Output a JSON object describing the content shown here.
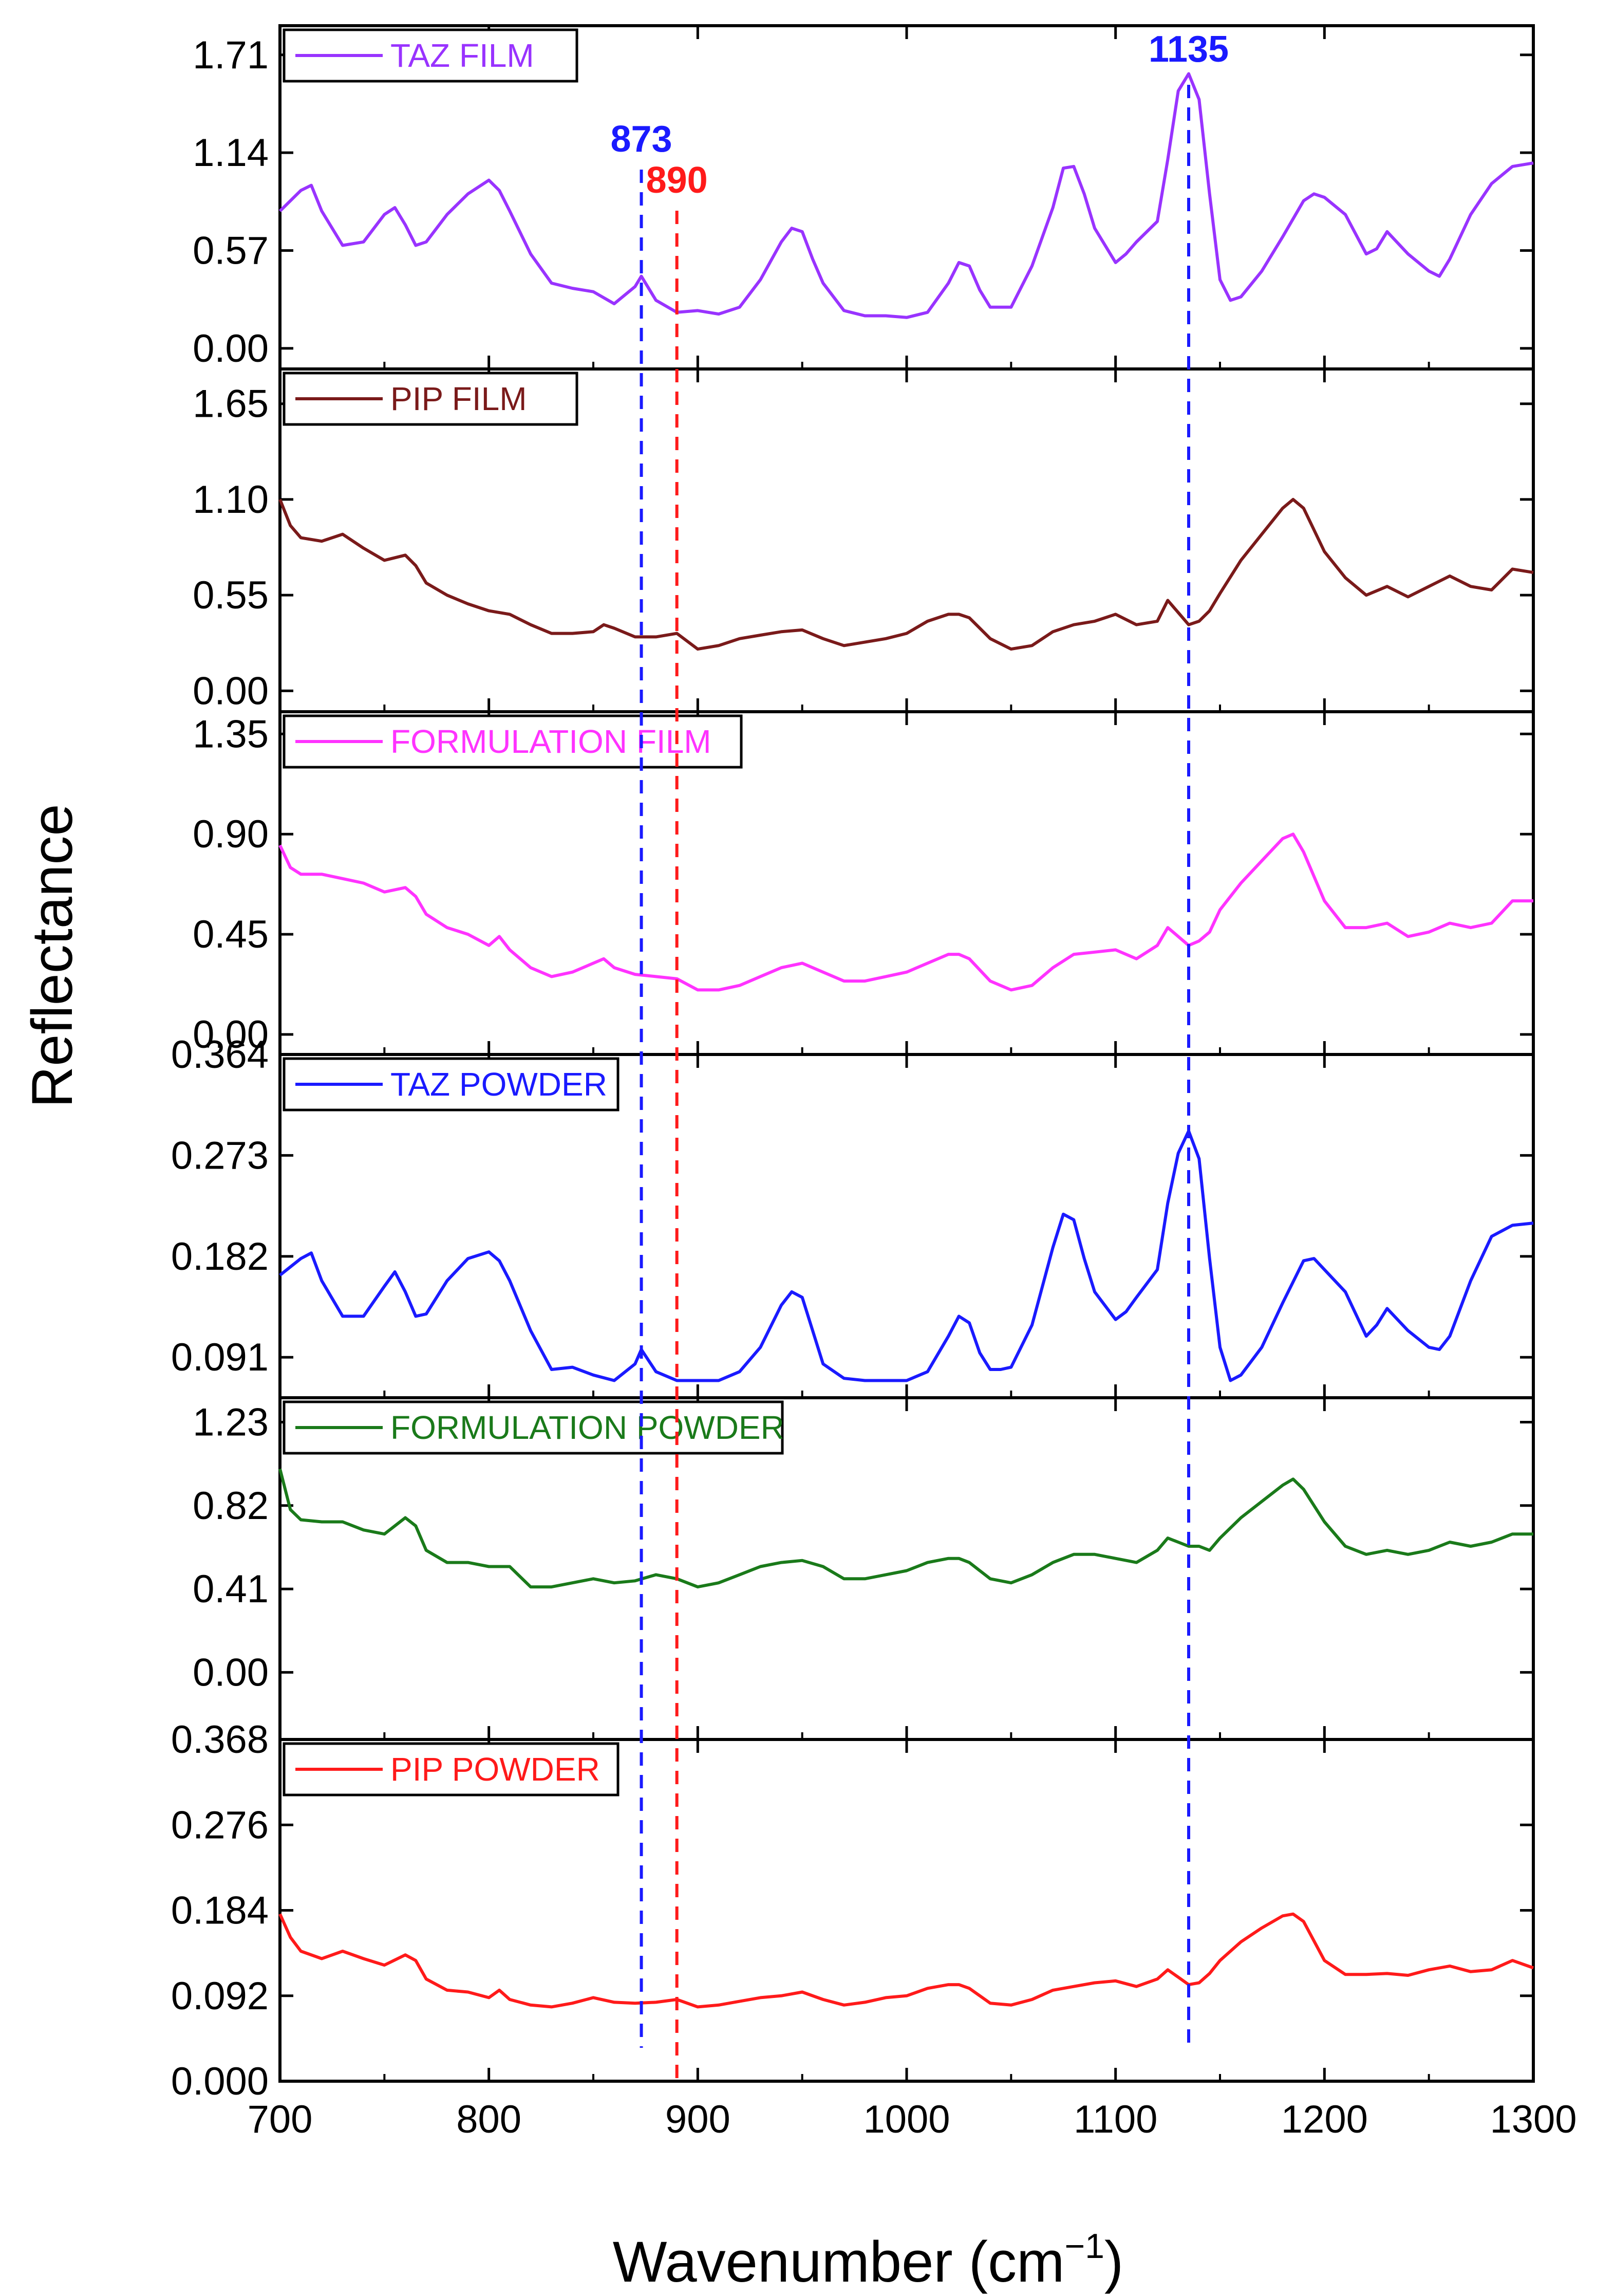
{
  "chart_data": {
    "type": "line",
    "title": "",
    "xlabel": "Wavenumber (cm",
    "xlabel_sup": "−1",
    "xlabel_close": ")",
    "ylabel": "Reflectance",
    "xlim": [
      700,
      1300
    ],
    "xticks": [
      700,
      800,
      900,
      1000,
      1100,
      1200,
      1300
    ],
    "xtick_labels": [
      "700",
      "800",
      "900",
      "1000",
      "1100",
      "1200",
      "1300"
    ],
    "vlines": [
      {
        "x": 873,
        "label": "873",
        "color": "#1a1aff"
      },
      {
        "x": 890,
        "label": "890",
        "color": "#ff1a1a"
      },
      {
        "x": 1135,
        "label": "1135",
        "color": "#1a1aff"
      }
    ],
    "panels": [
      {
        "name": "TAZ FILM",
        "color": "#9933ff",
        "ylim": [
          -0.12,
          1.88
        ],
        "yticks": [
          "0.00",
          "0.57",
          "1.14",
          "1.71"
        ],
        "x": [
          700,
          710,
          715,
          720,
          730,
          740,
          750,
          755,
          760,
          765,
          770,
          780,
          790,
          800,
          805,
          810,
          820,
          830,
          840,
          850,
          860,
          870,
          873,
          880,
          890,
          900,
          910,
          920,
          930,
          940,
          945,
          950,
          955,
          960,
          970,
          980,
          990,
          1000,
          1010,
          1020,
          1025,
          1030,
          1035,
          1040,
          1045,
          1050,
          1060,
          1070,
          1075,
          1080,
          1085,
          1090,
          1100,
          1105,
          1110,
          1120,
          1125,
          1130,
          1135,
          1140,
          1145,
          1150,
          1155,
          1160,
          1170,
          1180,
          1190,
          1195,
          1200,
          1210,
          1220,
          1225,
          1230,
          1240,
          1250,
          1255,
          1260,
          1270,
          1280,
          1290,
          1300
        ],
        "y": [
          0.8,
          0.92,
          0.95,
          0.8,
          0.6,
          0.62,
          0.78,
          0.82,
          0.72,
          0.6,
          0.62,
          0.78,
          0.9,
          0.98,
          0.92,
          0.8,
          0.55,
          0.38,
          0.35,
          0.33,
          0.26,
          0.36,
          0.42,
          0.28,
          0.21,
          0.22,
          0.2,
          0.24,
          0.4,
          0.62,
          0.7,
          0.68,
          0.52,
          0.38,
          0.22,
          0.19,
          0.19,
          0.18,
          0.21,
          0.38,
          0.5,
          0.48,
          0.34,
          0.24,
          0.24,
          0.24,
          0.48,
          0.82,
          1.05,
          1.06,
          0.9,
          0.7,
          0.5,
          0.55,
          0.62,
          0.74,
          1.1,
          1.5,
          1.6,
          1.45,
          0.9,
          0.4,
          0.28,
          0.3,
          0.45,
          0.65,
          0.86,
          0.9,
          0.88,
          0.78,
          0.55,
          0.58,
          0.68,
          0.55,
          0.45,
          0.42,
          0.52,
          0.78,
          0.96,
          1.06,
          1.08
        ]
      },
      {
        "name": "PIP FILM",
        "color": "#7a1a1a",
        "ylim": [
          -0.12,
          1.85
        ],
        "yticks": [
          "0.00",
          "0.55",
          "1.10",
          "1.65"
        ],
        "x": [
          700,
          705,
          710,
          720,
          730,
          740,
          750,
          760,
          765,
          770,
          780,
          790,
          800,
          810,
          820,
          830,
          840,
          850,
          855,
          860,
          870,
          880,
          890,
          900,
          910,
          920,
          930,
          940,
          950,
          960,
          970,
          980,
          990,
          1000,
          1010,
          1020,
          1025,
          1030,
          1040,
          1050,
          1060,
          1070,
          1080,
          1090,
          1100,
          1110,
          1120,
          1125,
          1130,
          1135,
          1140,
          1145,
          1150,
          1160,
          1170,
          1180,
          1185,
          1190,
          1200,
          1210,
          1220,
          1230,
          1240,
          1250,
          1260,
          1270,
          1280,
          1290,
          1300
        ],
        "y": [
          1.1,
          0.95,
          0.88,
          0.86,
          0.9,
          0.82,
          0.75,
          0.78,
          0.72,
          0.62,
          0.55,
          0.5,
          0.46,
          0.44,
          0.38,
          0.33,
          0.33,
          0.34,
          0.38,
          0.36,
          0.31,
          0.31,
          0.33,
          0.24,
          0.26,
          0.3,
          0.32,
          0.34,
          0.35,
          0.3,
          0.26,
          0.28,
          0.3,
          0.33,
          0.4,
          0.44,
          0.44,
          0.42,
          0.3,
          0.24,
          0.26,
          0.34,
          0.38,
          0.4,
          0.44,
          0.38,
          0.4,
          0.52,
          0.45,
          0.38,
          0.4,
          0.46,
          0.56,
          0.75,
          0.9,
          1.05,
          1.1,
          1.05,
          0.8,
          0.65,
          0.55,
          0.6,
          0.54,
          0.6,
          0.66,
          0.6,
          0.58,
          0.7,
          0.68
        ]
      },
      {
        "name": "FORMULATION FILM",
        "color": "#ff33ff",
        "ylim": [
          -0.09,
          1.45
        ],
        "yticks": [
          "0.00",
          "0.45",
          "0.90",
          "1.35"
        ],
        "x": [
          700,
          705,
          710,
          720,
          730,
          740,
          750,
          760,
          765,
          770,
          780,
          790,
          800,
          805,
          810,
          820,
          830,
          840,
          850,
          855,
          860,
          870,
          880,
          890,
          900,
          910,
          920,
          930,
          940,
          950,
          960,
          970,
          980,
          990,
          1000,
          1010,
          1020,
          1025,
          1030,
          1040,
          1050,
          1060,
          1070,
          1080,
          1090,
          1100,
          1110,
          1120,
          1125,
          1130,
          1135,
          1140,
          1145,
          1150,
          1160,
          1170,
          1180,
          1185,
          1190,
          1200,
          1210,
          1220,
          1230,
          1240,
          1250,
          1260,
          1270,
          1280,
          1290,
          1300
        ],
        "y": [
          0.85,
          0.75,
          0.72,
          0.72,
          0.7,
          0.68,
          0.64,
          0.66,
          0.62,
          0.54,
          0.48,
          0.45,
          0.4,
          0.44,
          0.38,
          0.3,
          0.26,
          0.28,
          0.32,
          0.34,
          0.3,
          0.27,
          0.26,
          0.25,
          0.2,
          0.2,
          0.22,
          0.26,
          0.3,
          0.32,
          0.28,
          0.24,
          0.24,
          0.26,
          0.28,
          0.32,
          0.36,
          0.36,
          0.34,
          0.24,
          0.2,
          0.22,
          0.3,
          0.36,
          0.37,
          0.38,
          0.34,
          0.4,
          0.48,
          0.44,
          0.4,
          0.42,
          0.46,
          0.56,
          0.68,
          0.78,
          0.88,
          0.9,
          0.82,
          0.6,
          0.48,
          0.48,
          0.5,
          0.44,
          0.46,
          0.5,
          0.48,
          0.5,
          0.6,
          0.6
        ]
      },
      {
        "name": "TAZ POWDER",
        "color": "#1a1aff",
        "ylim": [
          0.0545,
          0.364
        ],
        "yticks": [
          "0.091",
          "0.182",
          "0.273",
          "0.364"
        ],
        "x": [
          700,
          710,
          715,
          720,
          730,
          740,
          750,
          755,
          760,
          765,
          770,
          780,
          790,
          800,
          805,
          810,
          820,
          830,
          840,
          850,
          860,
          870,
          873,
          880,
          890,
          900,
          910,
          920,
          930,
          940,
          945,
          950,
          955,
          960,
          970,
          980,
          990,
          1000,
          1010,
          1020,
          1025,
          1030,
          1035,
          1040,
          1045,
          1050,
          1060,
          1070,
          1075,
          1080,
          1085,
          1090,
          1100,
          1105,
          1110,
          1120,
          1125,
          1130,
          1135,
          1140,
          1145,
          1150,
          1155,
          1160,
          1170,
          1180,
          1190,
          1195,
          1200,
          1210,
          1220,
          1225,
          1230,
          1240,
          1250,
          1255,
          1260,
          1270,
          1280,
          1290,
          1300
        ],
        "y": [
          0.165,
          0.18,
          0.185,
          0.16,
          0.128,
          0.128,
          0.155,
          0.168,
          0.15,
          0.128,
          0.13,
          0.16,
          0.18,
          0.186,
          0.178,
          0.16,
          0.115,
          0.08,
          0.082,
          0.075,
          0.07,
          0.085,
          0.098,
          0.078,
          0.07,
          0.07,
          0.07,
          0.078,
          0.1,
          0.138,
          0.15,
          0.145,
          0.115,
          0.085,
          0.072,
          0.07,
          0.07,
          0.07,
          0.078,
          0.11,
          0.128,
          0.122,
          0.095,
          0.08,
          0.08,
          0.082,
          0.12,
          0.19,
          0.22,
          0.215,
          0.18,
          0.15,
          0.125,
          0.132,
          0.145,
          0.17,
          0.23,
          0.275,
          0.295,
          0.27,
          0.18,
          0.1,
          0.07,
          0.075,
          0.1,
          0.14,
          0.178,
          0.18,
          0.17,
          0.15,
          0.11,
          0.12,
          0.135,
          0.115,
          0.1,
          0.098,
          0.11,
          0.16,
          0.2,
          0.21,
          0.212
        ]
      },
      {
        "name": "FORMULATION POWDER",
        "color": "#1a7a1a",
        "ylim": [
          -0.33,
          1.35
        ],
        "yticks": [
          "0.00",
          "0.41",
          "0.82",
          "1.23"
        ],
        "x": [
          700,
          705,
          710,
          720,
          730,
          740,
          750,
          760,
          765,
          770,
          780,
          790,
          800,
          810,
          820,
          830,
          840,
          850,
          860,
          870,
          880,
          890,
          900,
          910,
          920,
          930,
          940,
          950,
          960,
          970,
          980,
          990,
          1000,
          1010,
          1020,
          1025,
          1030,
          1040,
          1050,
          1060,
          1070,
          1080,
          1090,
          1100,
          1110,
          1120,
          1125,
          1130,
          1135,
          1140,
          1145,
          1150,
          1160,
          1170,
          1180,
          1185,
          1190,
          1200,
          1210,
          1220,
          1230,
          1240,
          1250,
          1260,
          1270,
          1280,
          1290,
          1300
        ],
        "y": [
          1.0,
          0.8,
          0.75,
          0.74,
          0.74,
          0.7,
          0.68,
          0.76,
          0.72,
          0.6,
          0.54,
          0.54,
          0.52,
          0.52,
          0.42,
          0.42,
          0.44,
          0.46,
          0.44,
          0.45,
          0.48,
          0.46,
          0.42,
          0.44,
          0.48,
          0.52,
          0.54,
          0.55,
          0.52,
          0.46,
          0.46,
          0.48,
          0.5,
          0.54,
          0.56,
          0.56,
          0.54,
          0.46,
          0.44,
          0.48,
          0.54,
          0.58,
          0.58,
          0.56,
          0.54,
          0.6,
          0.66,
          0.64,
          0.62,
          0.62,
          0.6,
          0.66,
          0.76,
          0.84,
          0.92,
          0.95,
          0.9,
          0.74,
          0.62,
          0.58,
          0.6,
          0.58,
          0.6,
          0.64,
          0.62,
          0.64,
          0.68,
          0.68
        ]
      },
      {
        "name": "PIP POWDER",
        "color": "#ff1a1a",
        "ylim": [
          0.0,
          0.368
        ],
        "yticks": [
          "0.000",
          "0.092",
          "0.184",
          "0.276",
          "0.368"
        ],
        "x": [
          700,
          705,
          710,
          720,
          730,
          740,
          750,
          760,
          765,
          770,
          780,
          790,
          800,
          805,
          810,
          820,
          830,
          840,
          850,
          860,
          870,
          880,
          890,
          900,
          910,
          920,
          930,
          940,
          950,
          960,
          970,
          980,
          990,
          1000,
          1010,
          1020,
          1025,
          1030,
          1040,
          1050,
          1060,
          1070,
          1080,
          1090,
          1100,
          1110,
          1120,
          1125,
          1130,
          1135,
          1140,
          1145,
          1150,
          1160,
          1170,
          1180,
          1185,
          1190,
          1200,
          1210,
          1220,
          1230,
          1240,
          1250,
          1260,
          1270,
          1280,
          1290,
          1300
        ],
        "y": [
          0.18,
          0.155,
          0.14,
          0.132,
          0.14,
          0.132,
          0.125,
          0.136,
          0.13,
          0.11,
          0.098,
          0.096,
          0.09,
          0.098,
          0.088,
          0.082,
          0.08,
          0.084,
          0.09,
          0.085,
          0.084,
          0.085,
          0.088,
          0.08,
          0.082,
          0.086,
          0.09,
          0.092,
          0.096,
          0.088,
          0.082,
          0.085,
          0.09,
          0.092,
          0.1,
          0.104,
          0.104,
          0.1,
          0.084,
          0.082,
          0.088,
          0.098,
          0.102,
          0.106,
          0.108,
          0.102,
          0.11,
          0.12,
          0.112,
          0.104,
          0.106,
          0.116,
          0.13,
          0.15,
          0.165,
          0.178,
          0.18,
          0.172,
          0.13,
          0.115,
          0.115,
          0.116,
          0.114,
          0.12,
          0.124,
          0.118,
          0.12,
          0.13,
          0.122
        ]
      }
    ]
  }
}
